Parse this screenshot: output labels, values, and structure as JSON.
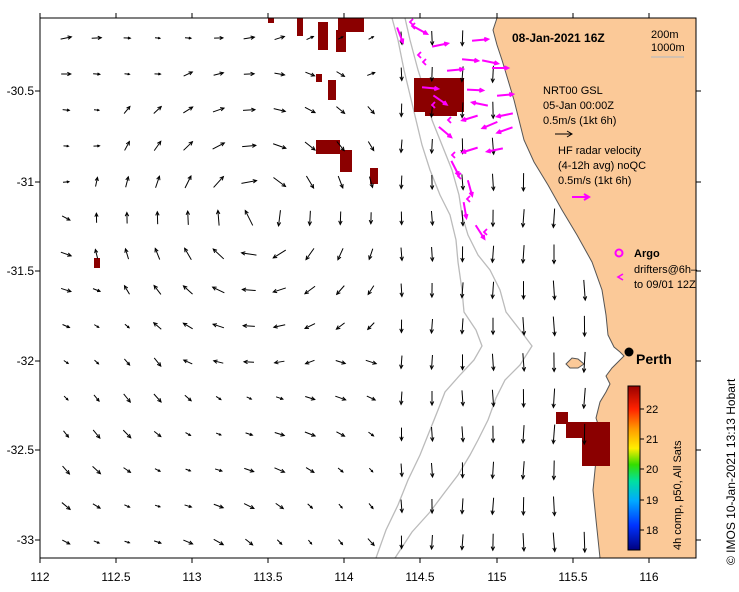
{
  "map": {
    "title": "08-Jan-2021 16Z",
    "depth_contours": [
      "200m",
      "1000m"
    ],
    "x_ticks": [
      "112",
      "112.5",
      "113",
      "113.5",
      "114",
      "114.5",
      "115",
      "115.5",
      "116"
    ],
    "y_ticks": [
      "-30.5",
      "-31",
      "-31.5",
      "-32",
      "-32.5",
      "-33"
    ],
    "city": "Perth",
    "credit": "© IMOS 10-Jan-2021 13:13 Hobart"
  },
  "legend": {
    "sst_source": "NRT00 GSL",
    "sst_date": "05-Jan 00:00Z",
    "current_scale": "0.5m/s (1kt 6h)",
    "hf_label_1": "HF radar velocity",
    "hf_label_2": "(4-12h avg) noQC",
    "hf_scale": "0.5m/s (1kt 6h)",
    "argo_label": "Argo",
    "drifters_label_1": "drifters@6h–",
    "drifters_label_2": "to 09/01 12Z"
  },
  "colorbar": {
    "label": "4h comp, p50, All Sats",
    "ticks": [
      "22",
      "21",
      "20",
      "19",
      "18"
    ]
  },
  "colors": {
    "land": "#fbc998",
    "hot_sst": "#8b0000",
    "hf_arrows": "#ff00ff",
    "contour": "#bbbbbb"
  }
}
